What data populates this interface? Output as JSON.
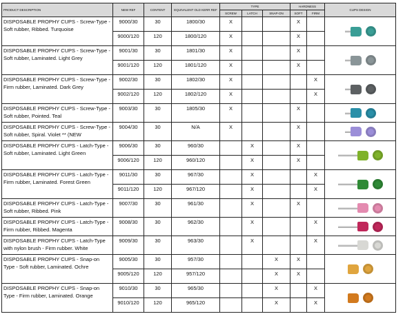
{
  "headers": {
    "desc": "PRODUCT DESCRIPTION",
    "new_ref": "NEW REF",
    "content": "CONTENT",
    "equiv": "EQUIVALENT OLD KERR REF",
    "type": "TYPE",
    "screw": "SCREW",
    "latch": "LATCH",
    "snap": "SNAP-ON",
    "hardness": "HARDNESS",
    "soft": "SOFT",
    "firm": "FIRM",
    "design": "CUPS DESIGN"
  },
  "mark": "X",
  "products": [
    {
      "desc": "DISPOSABLE PROPHY CUPS - Screw-Type - Soft rubber, Ribbed. Turquoise",
      "type": "screw",
      "hard": "soft",
      "color": "#3a9e96",
      "shank": "screw",
      "rows": [
        {
          "ref": "9000/30",
          "content": "30",
          "old": "1800/30"
        },
        {
          "ref": "9000/120",
          "content": "120",
          "old": "1800/120"
        }
      ]
    },
    {
      "desc": "DISPOSABLE PROPHY CUPS - Screw-Type - Soft rubber, Laminated. Light Grey",
      "type": "screw",
      "hard": "soft",
      "color": "#8a9598",
      "shank": "screw",
      "rows": [
        {
          "ref": "9001/30",
          "content": "30",
          "old": "1801/30"
        },
        {
          "ref": "9001/120",
          "content": "120",
          "old": "1801/120"
        }
      ]
    },
    {
      "desc": "DISPOSABLE PROPHY CUPS - Screw-Type - Firm rubber, Laminated. Dark Grey",
      "type": "screw",
      "hard": "firm",
      "color": "#5d6163",
      "shank": "screw",
      "rows": [
        {
          "ref": "9002/30",
          "content": "30",
          "old": "1802/30"
        },
        {
          "ref": "9002/120",
          "content": "120",
          "old": "1802/120"
        }
      ]
    },
    {
      "desc": "DISPOSABLE PROPHY CUPS - Screw-Type - Soft rubber, Pointed. Teal",
      "type": "screw",
      "hard": "soft",
      "color": "#2a8fa8",
      "shank": "screw",
      "rows": [
        {
          "ref": "9003/30",
          "content": "30",
          "old": "1805/30"
        }
      ]
    },
    {
      "desc": "DISPOSABLE PROPHY CUPS - Screw-Type - Soft rubber, Spiral. Violet ** (NEW",
      "type": "screw",
      "hard": "soft",
      "color": "#9b8ed8",
      "shank": "screw",
      "rows": [
        {
          "ref": "9004/30",
          "content": "30",
          "old": "N/A"
        }
      ]
    },
    {
      "desc": "DISPOSABLE PROPHY CUPS - Latch-Type - Soft rubber, Laminated. Light Green",
      "type": "latch",
      "hard": "soft",
      "color": "#7fb22a",
      "shank": "latch",
      "rows": [
        {
          "ref": "9006/30",
          "content": "30",
          "old": "960/30"
        },
        {
          "ref": "9006/120",
          "content": "120",
          "old": "960/120"
        }
      ]
    },
    {
      "desc": "DISPOSABLE PROPHY CUPS - Latch-Type - Firm rubber, Laminated. Forest Green",
      "type": "latch",
      "hard": "firm",
      "color": "#2f8a36",
      "shank": "latch",
      "rows": [
        {
          "ref": "9011/30",
          "content": "30",
          "old": "967/30"
        },
        {
          "ref": "9011/120",
          "content": "120",
          "old": "967/120"
        }
      ]
    },
    {
      "desc": "DISPOSABLE PROPHY CUPS - Latch-Type - Soft rubber, Ribbed. Pink",
      "type": "latch",
      "hard": "soft",
      "color": "#e48bb0",
      "shank": "latch",
      "rows": [
        {
          "ref": "9007/30",
          "content": "30",
          "old": "961/30"
        }
      ]
    },
    {
      "desc": "DISPOSABLE PROPHY CUPS - Latch-Type - Firm rubber, Ribbed. Magenta",
      "type": "latch",
      "hard": "firm",
      "color": "#c0275a",
      "shank": "latch",
      "rows": [
        {
          "ref": "9008/30",
          "content": "30",
          "old": "962/30"
        }
      ]
    },
    {
      "desc": "DISPOSABLE PROPHY CUPS - Latch-Type with nylon brush - Firm rubber. White",
      "type": "latch",
      "hard": "firm",
      "color": "#d8d8d4",
      "shank": "latch",
      "rows": [
        {
          "ref": "9009/30",
          "content": "30",
          "old": "963/30"
        }
      ]
    },
    {
      "desc": "DISPOSABLE PROPHY CUPS - Snap-on Type - Soft rubber, Laminated. Ochre",
      "type": "snap",
      "hard": "soft",
      "color": "#e0a53e",
      "shank": "none",
      "rows": [
        {
          "ref": "9005/30",
          "content": "30",
          "old": "957/30"
        },
        {
          "ref": "9005/120",
          "content": "120",
          "old": "957/120"
        }
      ]
    },
    {
      "desc": "DISPOSABLE PROPHY CUPS - Snap-on Type - Firm rubber, Laminated. Orange",
      "type": "snap",
      "hard": "firm",
      "color": "#d27a1e",
      "shank": "none",
      "rows": [
        {
          "ref": "9010/30",
          "content": "30",
          "old": "965/30"
        },
        {
          "ref": "9010/120",
          "content": "120",
          "old": "965/120"
        }
      ]
    }
  ]
}
